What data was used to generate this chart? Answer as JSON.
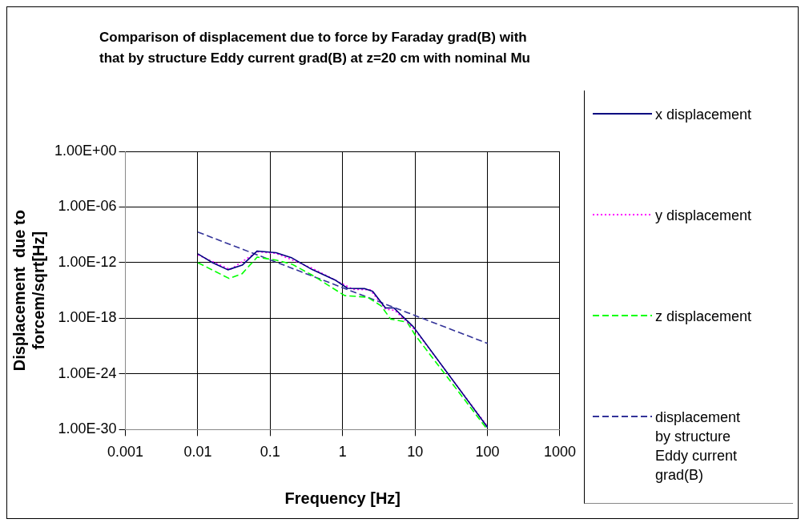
{
  "chart_data": {
    "type": "line",
    "title": "Comparison of displacement due to force by Faraday grad(B) with that by structure Eddy current grad(B) at z=20  cm with nominal Mu",
    "xlabel": "Frequency [Hz]",
    "ylabel": "Displacement  due to forcem/sqrt[Hz]",
    "log": "xy",
    "grid": true,
    "legend": "right",
    "marker": "none",
    "xlim": [
      0.001,
      1000
    ],
    "xticks": [
      0.001,
      0.01,
      0.1,
      1,
      10,
      100,
      1000
    ],
    "ylim": [
      1e-30,
      1
    ],
    "yticks": [
      {
        "value": 1,
        "label": "1.00E+00"
      },
      {
        "value": 1e-06,
        "label": "1.00E-06"
      },
      {
        "value": 1e-12,
        "label": "1.00E-12"
      },
      {
        "value": 1e-18,
        "label": "1.00E-18"
      },
      {
        "value": 1e-24,
        "label": "1.00E-24"
      },
      {
        "value": 1e-30,
        "label": "1.00E-30"
      }
    ],
    "series": [
      {
        "name": "x displacement",
        "color": "#000080",
        "line_style": "solid",
        "x": [
          0.01,
          0.016,
          0.026,
          0.041,
          0.066,
          0.12,
          0.2,
          0.38,
          0.78,
          1.17,
          2,
          2.6,
          3.9,
          5.1,
          9.5,
          100
        ],
        "values": [
          9e-12,
          1e-12,
          1.7e-13,
          5.4e-13,
          1.8e-11,
          1.2e-11,
          3.2e-12,
          1.8e-13,
          1.4e-14,
          1.7e-15,
          1.6e-15,
          8e-16,
          1.3e-17,
          1.3e-17,
          1.2e-19,
          1.8e-30
        ]
      },
      {
        "name": "y displacement",
        "color": "#ff00ff",
        "line_style": "dotted",
        "x": [
          0.01,
          0.028,
          0.066,
          0.12,
          0.22,
          0.38,
          0.78,
          1.4,
          2.4,
          3.9,
          5.3,
          10,
          100
        ],
        "values": [
          7e-12,
          1.8e-13,
          1.5e-11,
          1e-11,
          1.5e-12,
          2.5e-13,
          1.4e-14,
          1.3e-15,
          1.2e-15,
          1e-17,
          7e-18,
          5.5e-20,
          2.3e-30
        ]
      },
      {
        "name": "z displacement",
        "color": "#00ff00",
        "line_style": "dashed",
        "x": [
          0.01,
          0.027,
          0.041,
          0.066,
          0.12,
          0.2,
          0.38,
          1.07,
          2.2,
          3.4,
          4.6,
          7.8,
          10,
          100
        ],
        "values": [
          1e-12,
          2e-14,
          6.6e-14,
          4e-12,
          1.9e-12,
          6.8e-13,
          4.5e-14,
          2.8e-16,
          1.9e-16,
          2.2e-17,
          8.3e-19,
          3.8e-19,
          1.6e-20,
          1e-30
        ]
      },
      {
        "name": "displacement by structure Eddy current grad(B)",
        "color": "#333399",
        "line_style": "dashed",
        "x": [
          0.01,
          0.1,
          1,
          10,
          100
        ],
        "values": [
          2e-09,
          2e-12,
          2e-15,
          2e-18,
          2e-21
        ]
      }
    ]
  }
}
